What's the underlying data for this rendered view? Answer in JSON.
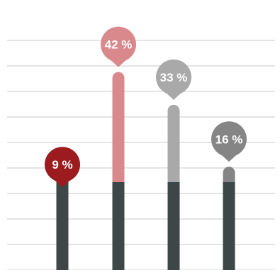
{
  "chart_data": {
    "type": "bar",
    "style": "pin-markers on rounded stems over a dark base",
    "grid": true,
    "ylim": [
      0,
      50
    ],
    "categories": [
      "",
      "",
      "",
      ""
    ],
    "series": [
      {
        "values": [
          9,
          42,
          33,
          16
        ],
        "labels": [
          "9 %",
          "42 %",
          "33 %",
          "16 %"
        ]
      }
    ],
    "colors": [
      "#9b1b1e",
      "#d9888c",
      "#a9a9a9",
      "#858585"
    ],
    "base_color": "#3d4747"
  }
}
